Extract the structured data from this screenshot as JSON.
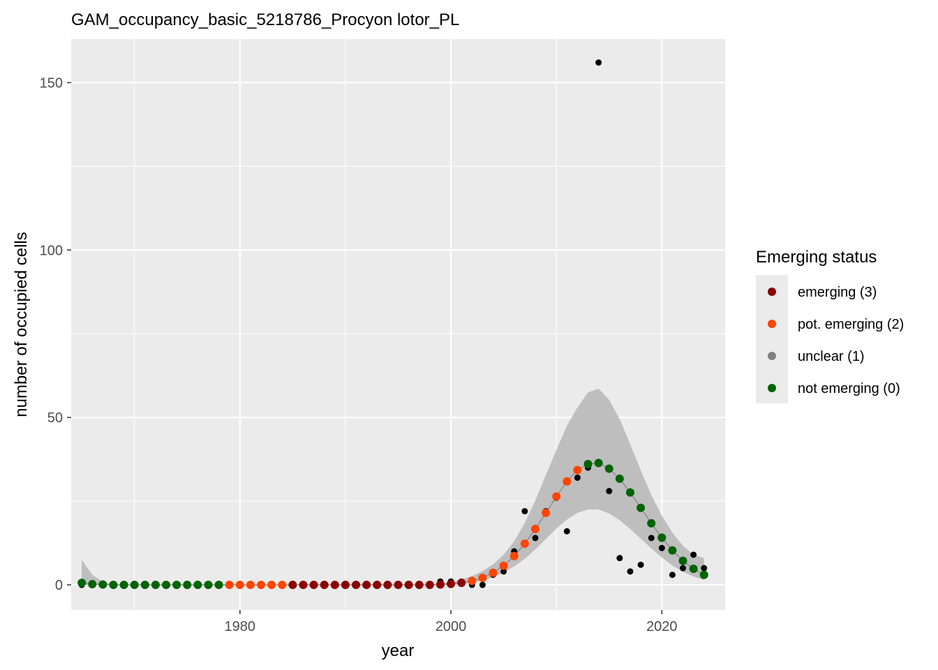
{
  "chart_data": {
    "type": "scatter",
    "title": "GAM_occupancy_basic_5218786_Procyon lotor_PL",
    "xlabel": "year",
    "ylabel": "number of occupied cells",
    "xlim": [
      1964,
      2026
    ],
    "ylim": [
      -7.5,
      163
    ],
    "x_ticks": [
      1980,
      2000,
      2020
    ],
    "x_minor_ticks": [
      1970,
      1990,
      2010
    ],
    "y_ticks": [
      0,
      50,
      100,
      150
    ],
    "y_minor_ticks": [
      25,
      75,
      125
    ],
    "grid": true,
    "colors": {
      "panel_bg": "#ebebeb",
      "grid": "#ffffff",
      "ribbon": "#bebebe",
      "fit_line": "#8c8c8c",
      "observed": "#000000",
      "emerging": "#8b0000",
      "pot_emerging": "#ff4500",
      "unclear": "#808080",
      "not_emerging": "#006400"
    },
    "observed": {
      "x": [
        1965,
        1966,
        1967,
        1968,
        1969,
        1970,
        1971,
        1972,
        1973,
        1974,
        1975,
        1976,
        1977,
        1978,
        1979,
        1980,
        1981,
        1982,
        1983,
        1984,
        1985,
        1986,
        1987,
        1988,
        1989,
        1990,
        1991,
        1992,
        1993,
        1994,
        1995,
        1996,
        1997,
        1998,
        1999,
        2000,
        2001,
        2002,
        2003,
        2004,
        2005,
        2006,
        2007,
        2008,
        2009,
        2010,
        2011,
        2012,
        2013,
        2014,
        2015,
        2016,
        2017,
        2018,
        2019,
        2020,
        2021,
        2022,
        2023,
        2024
      ],
      "y": [
        0,
        0,
        0,
        0,
        0,
        0,
        0,
        0,
        0,
        0,
        0,
        0,
        0,
        0,
        0,
        0,
        0,
        0,
        0,
        0,
        0,
        0,
        0,
        0,
        0,
        0,
        0,
        0,
        0,
        0,
        0,
        0,
        0,
        0,
        1,
        1,
        1,
        0,
        0,
        3,
        4,
        10,
        22,
        14,
        22,
        26,
        16,
        32,
        35,
        156,
        28,
        8,
        4,
        6,
        14,
        11,
        3,
        5,
        9,
        5
      ]
    },
    "fitted": {
      "x": [
        1965,
        1966,
        1967,
        1968,
        1969,
        1970,
        1971,
        1972,
        1973,
        1974,
        1975,
        1976,
        1977,
        1978,
        1979,
        1980,
        1981,
        1982,
        1983,
        1984,
        1985,
        1986,
        1987,
        1988,
        1989,
        1990,
        1991,
        1992,
        1993,
        1994,
        1995,
        1996,
        1997,
        1998,
        1999,
        2000,
        2001,
        2002,
        2003,
        2004,
        2005,
        2006,
        2007,
        2008,
        2009,
        2010,
        2011,
        2012,
        2013,
        2014,
        2015,
        2016,
        2017,
        2018,
        2019,
        2020,
        2021,
        2022,
        2023,
        2024
      ],
      "y": [
        0.6,
        0.2,
        0.1,
        0,
        0,
        0,
        0,
        0,
        0,
        0,
        0,
        0,
        0,
        0,
        0,
        0,
        0,
        0,
        0,
        0,
        0,
        0,
        0,
        0,
        0,
        0,
        0,
        0,
        0,
        0,
        0,
        0,
        0,
        0,
        0.1,
        0.3,
        0.6,
        1.2,
        2.1,
        3.6,
        5.7,
        8.6,
        12.3,
        16.7,
        21.5,
        26.4,
        30.9,
        34.3,
        36.1,
        36.4,
        34.7,
        31.7,
        27.6,
        23.0,
        18.4,
        14.1,
        10.3,
        7.2,
        4.8,
        3.0
      ],
      "lower": [
        0,
        0,
        0,
        0,
        0,
        0,
        0,
        0,
        0,
        0,
        0,
        0,
        0,
        0,
        0,
        0,
        0,
        0,
        0,
        0,
        0,
        0,
        0,
        0,
        0,
        0,
        0,
        0,
        0,
        0,
        0,
        0,
        0,
        0,
        0,
        0,
        0.2,
        0.6,
        1.2,
        2.3,
        3.7,
        5.5,
        7.8,
        10.6,
        13.7,
        16.8,
        19.5,
        21.5,
        22.5,
        22.5,
        21.3,
        19.3,
        16.7,
        13.8,
        10.9,
        8.2,
        5.8,
        3.9,
        2.5,
        1.4
      ],
      "upper": [
        7.5,
        3,
        1,
        0,
        0,
        0,
        0,
        0,
        0,
        0,
        0,
        0,
        0,
        0,
        0,
        0,
        0,
        0,
        0,
        0,
        0,
        0,
        0,
        0,
        0,
        0,
        0,
        0,
        0,
        0,
        0,
        0,
        0,
        0,
        0.4,
        0.9,
        1.6,
        2.6,
        4.1,
        6.1,
        9.0,
        13.0,
        18.5,
        25.2,
        32.8,
        40.3,
        47.5,
        53.0,
        57.5,
        58.6,
        55.3,
        49.5,
        42.0,
        34.2,
        26.8,
        20.7,
        15.6,
        11.7,
        9.0,
        8.0
      ],
      "status": [
        0,
        0,
        0,
        0,
        0,
        0,
        0,
        0,
        0,
        0,
        0,
        0,
        0,
        0,
        2,
        2,
        2,
        2,
        2,
        2,
        3,
        3,
        3,
        3,
        3,
        3,
        3,
        3,
        3,
        3,
        3,
        3,
        3,
        3,
        3,
        3,
        3,
        2,
        2,
        2,
        2,
        2,
        2,
        2,
        2,
        2,
        2,
        2,
        0,
        0,
        0,
        0,
        0,
        0,
        0,
        0,
        0,
        0,
        0,
        0
      ]
    },
    "legend": {
      "title": "Emerging status",
      "placement": "right",
      "items": [
        {
          "label": "emerging (3)",
          "status": 3,
          "color": "#8b0000"
        },
        {
          "label": "pot. emerging (2)",
          "status": 2,
          "color": "#ff4500"
        },
        {
          "label": "unclear (1)",
          "status": 1,
          "color": "#808080"
        },
        {
          "label": "not emerging (0)",
          "status": 0,
          "color": "#006400"
        }
      ]
    }
  }
}
